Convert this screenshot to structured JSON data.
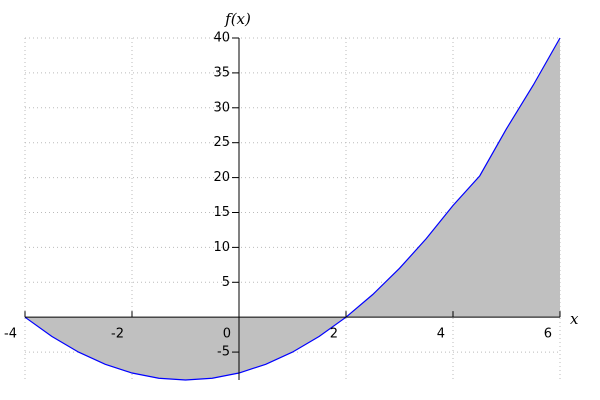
{
  "chart_data": {
    "type": "area",
    "x_label": "x",
    "y_label": "f(x)",
    "x": [
      -4,
      -3.5,
      -3,
      -2.5,
      -2,
      -1.5,
      -1,
      -0.5,
      0,
      0.5,
      1,
      1.5,
      2,
      2.5,
      3,
      3.5,
      4,
      4.5,
      5,
      5.5,
      6
    ],
    "values": [
      0,
      -2.75,
      -5,
      -6.75,
      -8,
      -8.75,
      -9,
      -8.75,
      -8,
      -6.75,
      -5,
      -2.75,
      0,
      3.25,
      7,
      11.25,
      16,
      20.25,
      27,
      33.25,
      40
    ],
    "line_color": "#0000ff",
    "fill_color": "#c0c0c0",
    "xlim": [
      -4,
      6
    ],
    "ylim": [
      -9,
      40
    ],
    "xticks": [
      -4,
      -2,
      0,
      2,
      4,
      6
    ],
    "yticks": [
      -5,
      5,
      10,
      15,
      20,
      25,
      30,
      35,
      40
    ],
    "grid": true
  }
}
